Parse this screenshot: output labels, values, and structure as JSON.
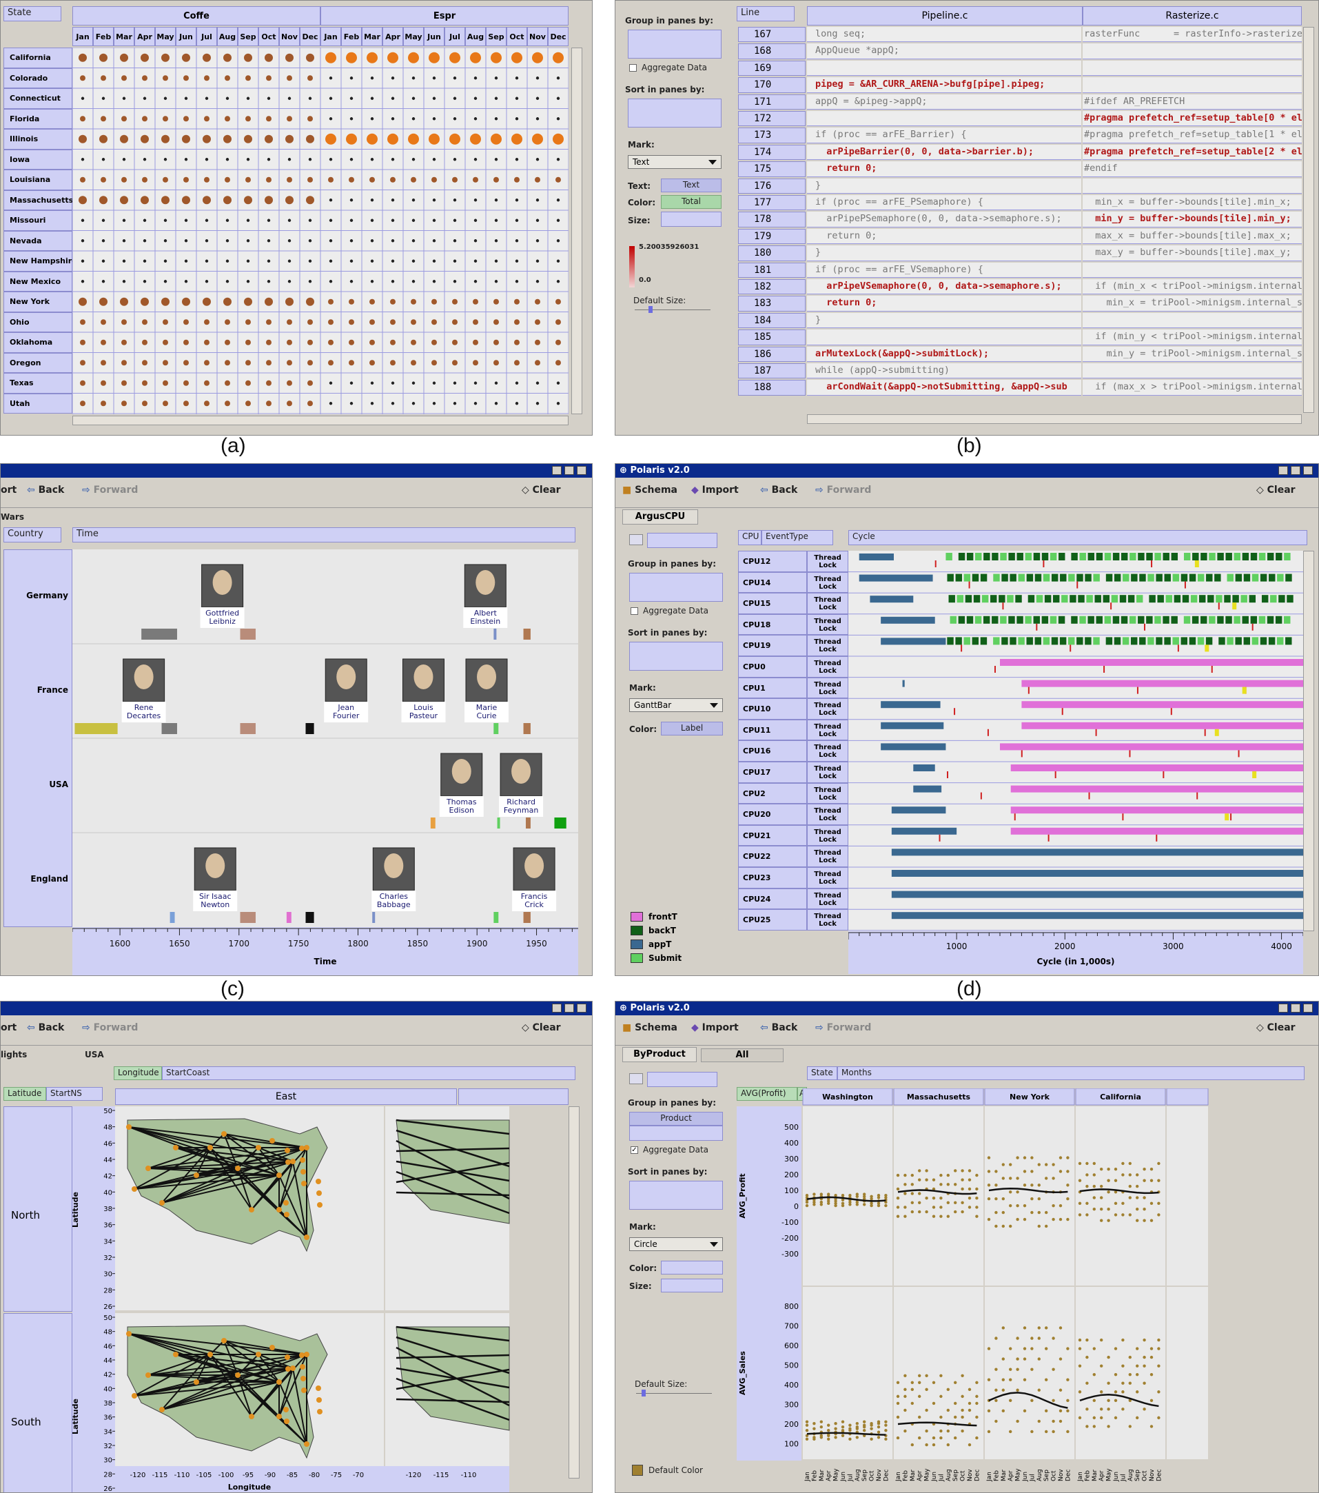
{
  "captions": [
    "(a)",
    "(b)",
    "(c)",
    "(d)"
  ],
  "a": {
    "shelf": "State",
    "col_groups": [
      "Coffe",
      "Espr"
    ],
    "months": [
      "Jan",
      "Feb",
      "Mar",
      "Apr",
      "May",
      "Jun",
      "Jul",
      "Aug",
      "Sep",
      "Oct",
      "Nov",
      "Dec"
    ],
    "states": [
      "California",
      "Colorado",
      "Connecticut",
      "Florida",
      "Illinois",
      "Iowa",
      "Louisiana",
      "Massachusetts",
      "Missouri",
      "Nevada",
      "New Hampshire",
      "New Mexico",
      "New York",
      "Ohio",
      "Oklahoma",
      "Oregon",
      "Texas",
      "Utah"
    ],
    "coffe_size": [
      3,
      2,
      1,
      2,
      3,
      1,
      2,
      3,
      1,
      1,
      1,
      1,
      3,
      2,
      2,
      2,
      2,
      2
    ],
    "espr_size": [
      4,
      1,
      1,
      1,
      4,
      1,
      2,
      1,
      1,
      1,
      1,
      1,
      2,
      2,
      2,
      2,
      1,
      1
    ]
  },
  "b": {
    "shelves": {
      "group": "Group in panes by:",
      "aggregate": "Aggregate Data",
      "sort": "Sort in panes by:",
      "mark": "Mark:",
      "mark_value": "Text",
      "text": "Text:",
      "text_value": "Text",
      "color": "Color:",
      "color_value": "Total",
      "size": "Size:",
      "default_size": "Default Size:",
      "legend_max": "5.20035926031",
      "legend_min": "0.0"
    },
    "line_pill": "Line",
    "col_headers": [
      "Pipeline.c",
      "Rasterize.c"
    ],
    "lines": [
      {
        "n": "167",
        "a": "long seq;",
        "ac": "n",
        "b": "rasterFunc      = rasterInfo->rasterize;",
        "bc": "n"
      },
      {
        "n": "168",
        "a": "AppQueue *appQ;",
        "ac": "n",
        "b": "",
        "bc": "n"
      },
      {
        "n": "169",
        "a": "",
        "ac": "n",
        "b": "",
        "bc": "n"
      },
      {
        "n": "170",
        "a": "pipeg = &AR_CURR_ARENA->bufg[pipe].pipeg;",
        "ac": "r",
        "b": "",
        "bc": "n"
      },
      {
        "n": "171",
        "a": "appQ = &pipeg->appQ;",
        "ac": "n",
        "b": "#ifdef AR_PREFETCH",
        "bc": "n"
      },
      {
        "n": "172",
        "a": "",
        "ac": "n",
        "b": "#pragma prefetch_ref=setup_table[0 * elem",
        "bc": "r"
      },
      {
        "n": "173",
        "a": "if (proc == arFE_Barrier) {",
        "ac": "n",
        "b": "#pragma prefetch_ref=setup_table[1 * elem",
        "bc": "n"
      },
      {
        "n": "174",
        "a": "  arPipeBarrier(0, 0, data->barrier.b);",
        "ac": "r",
        "b": "#pragma prefetch_ref=setup_table[2 * elem",
        "bc": "r"
      },
      {
        "n": "175",
        "a": "  return 0;",
        "ac": "r",
        "b": "#endif",
        "bc": "n"
      },
      {
        "n": "176",
        "a": "}",
        "ac": "n",
        "b": "",
        "bc": "n"
      },
      {
        "n": "177",
        "a": "if (proc == arFE_PSemaphore) {",
        "ac": "n",
        "b": "  min_x = buffer->bounds[tile].min_x;",
        "bc": "n"
      },
      {
        "n": "178",
        "a": "  arPipePSemaphore(0, 0, data->semaphore.s);",
        "ac": "n",
        "b": "  min_y = buffer->bounds[tile].min_y;",
        "bc": "r"
      },
      {
        "n": "179",
        "a": "  return 0;",
        "ac": "n",
        "b": "  max_x = buffer->bounds[tile].max_x;",
        "bc": "n"
      },
      {
        "n": "180",
        "a": "}",
        "ac": "n",
        "b": "  max_y = buffer->bounds[tile].max_y;",
        "bc": "n"
      },
      {
        "n": "181",
        "a": "if (proc == arFE_VSemaphore) {",
        "ac": "n",
        "b": "",
        "bc": "n"
      },
      {
        "n": "182",
        "a": "  arPipeVSemaphore(0, 0, data->semaphore.s);",
        "ac": "r",
        "b": "  if (min_x < triPool->minigsm.internal_sc",
        "bc": "n"
      },
      {
        "n": "183",
        "a": "  return 0;",
        "ac": "r",
        "b": "    min_x = triPool->minigsm.internal_sc",
        "bc": "n"
      },
      {
        "n": "184",
        "a": "}",
        "ac": "n",
        "b": "",
        "bc": "n"
      },
      {
        "n": "185",
        "a": "",
        "ac": "n",
        "b": "  if (min_y < triPool->minigsm.internal_sc",
        "bc": "n"
      },
      {
        "n": "186",
        "a": "arMutexLock(&appQ->submitLock);",
        "ac": "r",
        "b": "    min_y = triPool->minigsm.internal_sc",
        "bc": "n"
      },
      {
        "n": "187",
        "a": "while (appQ->submitting)",
        "ac": "n",
        "b": "",
        "bc": "n"
      },
      {
        "n": "188",
        "a": "  arCondWait(&appQ->notSubmitting, &appQ->sub",
        "ac": "r",
        "b": "  if (max_x > triPool->minigsm.internal_sc",
        "bc": "n"
      }
    ]
  },
  "c": {
    "toolbar": {
      "left": "ort",
      "back": "Back",
      "forward": "Forward",
      "clear": "Clear"
    },
    "tab": "Wars",
    "shelves": {
      "rows": "Country",
      "cols": "Time"
    },
    "rows": [
      "Germany",
      "France",
      "USA",
      "England"
    ],
    "xticks": [
      "1600",
      "1650",
      "1700",
      "1750",
      "1800",
      "1850",
      "1900",
      "1950"
    ],
    "xlabel": "Time",
    "people": [
      {
        "name": "Gottfried\nLeibniz",
        "row": 0,
        "year": 1686
      },
      {
        "name": "Albert\nEinstein",
        "row": 0,
        "year": 1907
      },
      {
        "name": "Rene\nDecartes",
        "row": 1,
        "year": 1620
      },
      {
        "name": "Jean\nFourier",
        "row": 1,
        "year": 1790
      },
      {
        "name": "Louis\nPasteur",
        "row": 1,
        "year": 1855
      },
      {
        "name": "Marie\nCurie",
        "row": 1,
        "year": 1908
      },
      {
        "name": "Thomas\nEdison",
        "row": 2,
        "year": 1887
      },
      {
        "name": "Richard\nFeynman",
        "row": 2,
        "year": 1937
      },
      {
        "name": "Sir Isaac\nNewton",
        "row": 3,
        "year": 1680
      },
      {
        "name": "Charles\nBabbage",
        "row": 3,
        "year": 1830
      },
      {
        "name": "Francis\nCrick",
        "row": 3,
        "year": 1948
      }
    ],
    "wars": [
      {
        "row": 0,
        "s": 1618,
        "e": 1648,
        "c": "#7a7a7a"
      },
      {
        "row": 0,
        "s": 1701,
        "e": 1714,
        "c": "#b98c7a"
      },
      {
        "row": 0,
        "s": 1914,
        "e": 1915,
        "c": "#7a90c8"
      },
      {
        "row": 0,
        "s": 1939,
        "e": 1945,
        "c": "#b07850"
      },
      {
        "row": 1,
        "s": 1562,
        "e": 1598,
        "c": "#c8c040"
      },
      {
        "row": 1,
        "s": 1635,
        "e": 1648,
        "c": "#7a7a7a"
      },
      {
        "row": 1,
        "s": 1701,
        "e": 1714,
        "c": "#b98c7a"
      },
      {
        "row": 1,
        "s": 1756,
        "e": 1763,
        "c": "#111"
      },
      {
        "row": 1,
        "s": 1914,
        "e": 1915,
        "c": "#7a90c8"
      },
      {
        "row": 1,
        "s": 1914,
        "e": 1918,
        "c": "#60d060"
      },
      {
        "row": 1,
        "s": 1939,
        "e": 1945,
        "c": "#b07850"
      },
      {
        "row": 2,
        "s": 1861,
        "e": 1865,
        "c": "#e8a040"
      },
      {
        "row": 2,
        "s": 1917,
        "e": 1918,
        "c": "#60d060"
      },
      {
        "row": 2,
        "s": 1941,
        "e": 1945,
        "c": "#b07850"
      },
      {
        "row": 2,
        "s": 1965,
        "e": 1975,
        "c": "#10a010"
      },
      {
        "row": 3,
        "s": 1642,
        "e": 1646,
        "c": "#7aa0d8"
      },
      {
        "row": 3,
        "s": 1701,
        "e": 1714,
        "c": "#b98c7a"
      },
      {
        "row": 3,
        "s": 1740,
        "e": 1744,
        "c": "#e070d0"
      },
      {
        "row": 3,
        "s": 1756,
        "e": 1763,
        "c": "#111"
      },
      {
        "row": 3,
        "s": 1812,
        "e": 1813,
        "c": "#7a90c8"
      },
      {
        "row": 3,
        "s": 1914,
        "e": 1918,
        "c": "#60d060"
      },
      {
        "row": 3,
        "s": 1939,
        "e": 1945,
        "c": "#b07850"
      }
    ]
  },
  "d": {
    "title": "Polaris v2.0",
    "toolbar": {
      "schema": "Schema",
      "import": "Import",
      "back": "Back",
      "forward": "Forward",
      "clear": "Clear"
    },
    "tab": "ArgusCPU",
    "shelves": {
      "group": "Group in panes by:",
      "aggregate": "Aggregate Data",
      "sort": "Sort in panes by:",
      "mark": "Mark:",
      "mark_value": "GanttBar",
      "color": "Color:",
      "color_value": "Label",
      "cpu": "CPU",
      "event": "EventType",
      "cycle": "Cycle"
    },
    "cpus": [
      "CPU12",
      "CPU14",
      "CPU15",
      "CPU18",
      "CPU19",
      "CPU0",
      "CPU1",
      "CPU10",
      "CPU11",
      "CPU16",
      "CPU17",
      "CPU2",
      "CPU20",
      "CPU21",
      "CPU22",
      "CPU23",
      "CPU24",
      "CPU25"
    ],
    "events": [
      "Thread",
      "Lock"
    ],
    "legend": [
      {
        "label": "frontT",
        "color": "#e070d8"
      },
      {
        "label": "backT",
        "color": "#106018"
      },
      {
        "label": "appT",
        "color": "#3a6890"
      },
      {
        "label": "Submit",
        "color": "#60d060"
      }
    ],
    "xticks": [
      "1000",
      "2000",
      "3000",
      "4000"
    ],
    "xlabel": "Cycle (in 1,000s)"
  },
  "e": {
    "toolbar": {
      "left": "ort",
      "back": "Back",
      "forward": "Forward",
      "clear": "Clear"
    },
    "tabs": [
      "lights",
      "USA"
    ],
    "shelves": {
      "lon": "Longitude",
      "start": "StartCoast",
      "lat": "Latitude",
      "startns": "StartNS"
    },
    "col_header": "East",
    "rows": [
      "North",
      "South"
    ],
    "ylabel": "Latitude",
    "yticks": [
      "50",
      "48",
      "46",
      "44",
      "42",
      "40",
      "38",
      "36",
      "34",
      "32",
      "30",
      "28",
      "26"
    ],
    "xticks": [
      "-120",
      "-115",
      "-110",
      "-105",
      "-100",
      "-95",
      "-90",
      "-85",
      "-80",
      "-75",
      "-70"
    ],
    "xticks_right": [
      "-120",
      "-115",
      "-110"
    ],
    "xlabel": "Longitude"
  },
  "f": {
    "title": "Polaris v2.0",
    "toolbar": {
      "schema": "Schema",
      "import": "Import",
      "back": "Back",
      "forward": "Forward",
      "clear": "Clear"
    },
    "tabs": [
      "ByProduct",
      "All"
    ],
    "shelves": {
      "group": "Group in panes by:",
      "group_value": "Product",
      "aggregate": "Aggregate Data",
      "sort": "Sort in panes by:",
      "mark": "Mark:",
      "mark_value": "Circle",
      "color": "Color:",
      "size": "Size:",
      "default_size": "Default Size:",
      "default_color": "Default Color",
      "state": "State",
      "months": "Months",
      "avg": "AVG(Profit)",
      "avg_cut": "A"
    },
    "states": [
      "Washington",
      "Massachusetts",
      "New York",
      "California"
    ],
    "ylabels": [
      "AVG_Profit",
      "AVG_Sales"
    ],
    "profit_ticks": [
      "500",
      "400",
      "300",
      "200",
      "100",
      "0",
      "-100",
      "-200",
      "-300"
    ],
    "sales_ticks": [
      "800",
      "700",
      "600",
      "500",
      "400",
      "300",
      "200",
      "100"
    ],
    "months": [
      "Jan",
      "Feb",
      "Mar",
      "Apr",
      "May",
      "Jun",
      "Jul",
      "Aug",
      "Sep",
      "Oct",
      "Nov",
      "Dec"
    ]
  }
}
